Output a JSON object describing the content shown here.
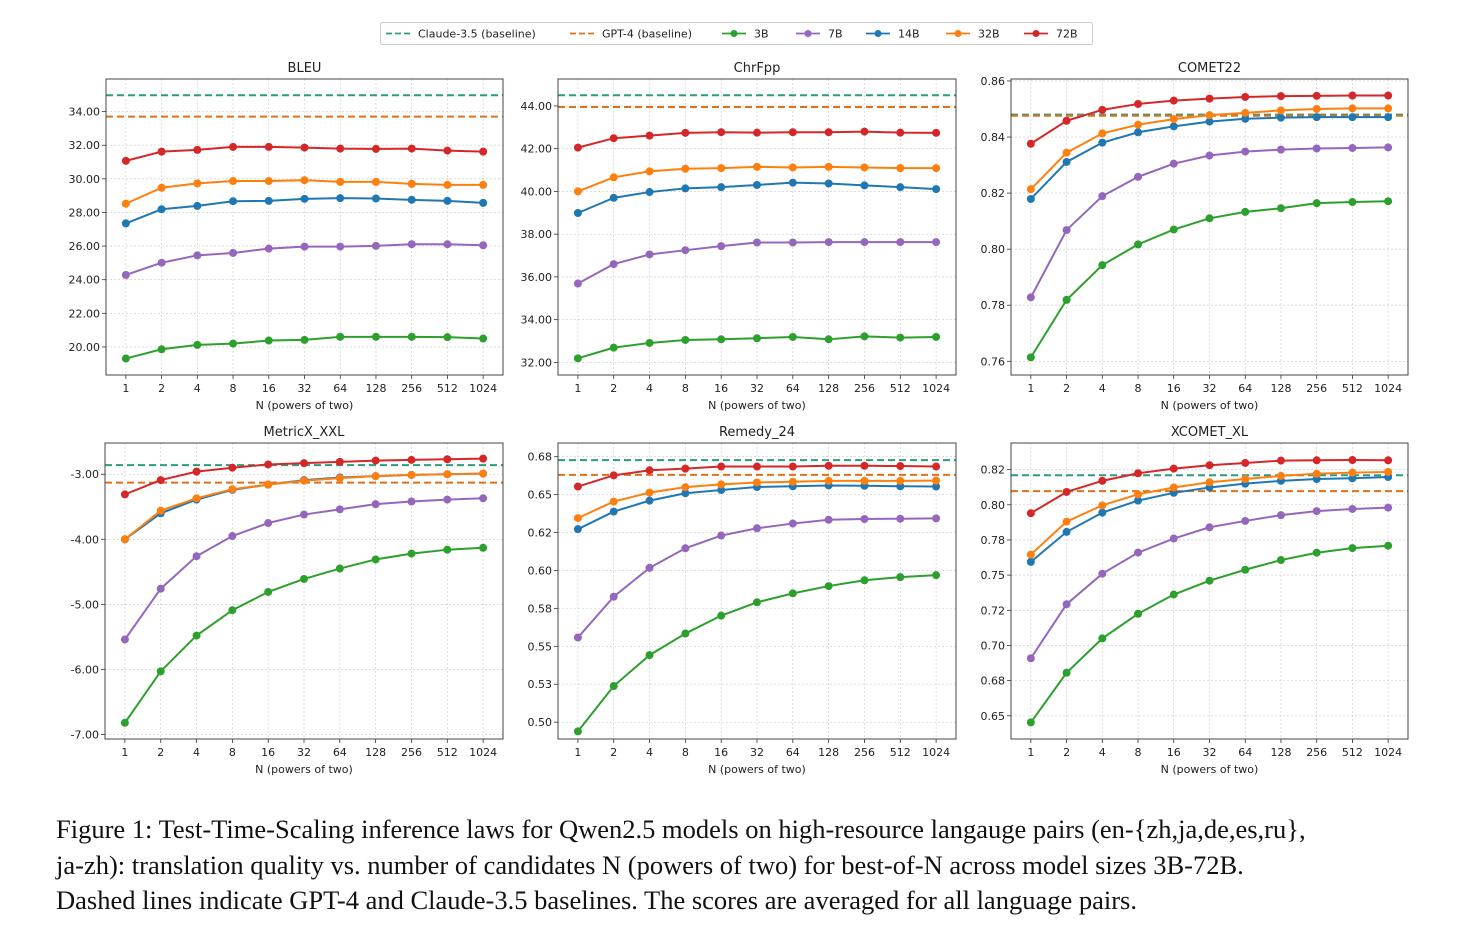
{
  "legend": [
    {
      "name": "Claude-3.5 (baseline)",
      "color": "#2a9d7f",
      "style": "dashed"
    },
    {
      "name": "GPT-4 (baseline)",
      "color": "#e0701a",
      "style": "dashed"
    },
    {
      "name": "3B",
      "color": "#2ca02c",
      "style": "line-marker"
    },
    {
      "name": "7B",
      "color": "#9467bd",
      "style": "line-marker"
    },
    {
      "name": "14B",
      "color": "#1f77b4",
      "style": "line-marker"
    },
    {
      "name": "32B",
      "color": "#ff7f0e",
      "style": "line-marker"
    },
    {
      "name": "72B",
      "color": "#d62728",
      "style": "line-marker"
    }
  ],
  "chart_data": [
    {
      "type": "line",
      "title": "BLEU",
      "xlabel": "N (powers of two)",
      "ylabel": "",
      "categories": [
        "1",
        "2",
        "4",
        "8",
        "16",
        "32",
        "64",
        "128",
        "256",
        "512",
        "1024"
      ],
      "ylim": [
        18.33,
        35.94
      ],
      "grid": true,
      "legend_placement": "top-center",
      "yticks": [
        {
          "value": 20,
          "label": "20.00"
        },
        {
          "value": 22,
          "label": "22.00"
        },
        {
          "value": 24,
          "label": "24.00"
        },
        {
          "value": 26,
          "label": "26.00"
        },
        {
          "value": 28,
          "label": "28.00"
        },
        {
          "value": 30,
          "label": "30.00"
        },
        {
          "value": 32,
          "label": "32.00"
        },
        {
          "value": 34,
          "label": "34.00"
        }
      ],
      "baselines": [
        {
          "name": "Claude-3.5 (baseline)",
          "value": 34.97
        },
        {
          "name": "GPT-4 (baseline)",
          "value": 33.7
        }
      ],
      "series": [
        {
          "name": "3B",
          "values": [
            19.31,
            19.86,
            20.12,
            20.2,
            20.38,
            20.42,
            20.6,
            20.6,
            20.6,
            20.58,
            20.5
          ]
        },
        {
          "name": "7B",
          "values": [
            24.28,
            25.01,
            25.45,
            25.59,
            25.85,
            25.97,
            25.97,
            26.01,
            26.11,
            26.11,
            26.05
          ]
        },
        {
          "name": "14B",
          "values": [
            27.35,
            28.19,
            28.39,
            28.67,
            28.69,
            28.81,
            28.85,
            28.83,
            28.75,
            28.69,
            28.57
          ]
        },
        {
          "name": "32B",
          "values": [
            28.52,
            29.47,
            29.73,
            29.87,
            29.87,
            29.92,
            29.82,
            29.82,
            29.7,
            29.64,
            29.64
          ]
        },
        {
          "name": "72B",
          "values": [
            31.07,
            31.62,
            31.72,
            31.9,
            31.9,
            31.86,
            31.8,
            31.78,
            31.8,
            31.68,
            31.62
          ]
        }
      ]
    },
    {
      "type": "line",
      "title": "ChrFpp",
      "xlabel": "N (powers of two)",
      "ylabel": "",
      "categories": [
        "1",
        "2",
        "4",
        "8",
        "16",
        "32",
        "64",
        "128",
        "256",
        "512",
        "1024"
      ],
      "ylim": [
        31.41,
        45.26
      ],
      "grid": true,
      "yticks": [
        {
          "value": 32,
          "label": "32.00"
        },
        {
          "value": 34,
          "label": "34.00"
        },
        {
          "value": 36,
          "label": "36.00"
        },
        {
          "value": 38,
          "label": "38.00"
        },
        {
          "value": 40,
          "label": "40.00"
        },
        {
          "value": 42,
          "label": "42.00"
        },
        {
          "value": 44,
          "label": "44.00"
        }
      ],
      "baselines": [
        {
          "name": "Claude-3.5 (baseline)",
          "value": 44.5
        },
        {
          "name": "GPT-4 (baseline)",
          "value": 43.95
        }
      ],
      "series": [
        {
          "name": "3B",
          "values": [
            32.19,
            32.69,
            32.91,
            33.05,
            33.08,
            33.13,
            33.19,
            33.08,
            33.22,
            33.16,
            33.19
          ]
        },
        {
          "name": "7B",
          "values": [
            35.69,
            36.6,
            37.05,
            37.25,
            37.44,
            37.61,
            37.61,
            37.63,
            37.63,
            37.63,
            37.63
          ]
        },
        {
          "name": "14B",
          "values": [
            38.99,
            39.7,
            39.97,
            40.14,
            40.2,
            40.3,
            40.41,
            40.37,
            40.28,
            40.2,
            40.11
          ]
        },
        {
          "name": "32B",
          "values": [
            40.0,
            40.66,
            40.94,
            41.06,
            41.09,
            41.15,
            41.12,
            41.15,
            41.12,
            41.09,
            41.09
          ]
        },
        {
          "name": "72B",
          "values": [
            42.05,
            42.49,
            42.61,
            42.74,
            42.77,
            42.75,
            42.77,
            42.77,
            42.8,
            42.75,
            42.74
          ]
        }
      ]
    },
    {
      "type": "line",
      "title": "COMET22",
      "xlabel": "N (powers of two)",
      "ylabel": "",
      "categories": [
        "1",
        "2",
        "4",
        "8",
        "16",
        "32",
        "64",
        "128",
        "256",
        "512",
        "1024"
      ],
      "ylim": [
        0.7551,
        0.8607
      ],
      "grid": true,
      "yticks": [
        {
          "value": 0.76,
          "label": "0.76"
        },
        {
          "value": 0.78,
          "label": "0.78"
        },
        {
          "value": 0.8,
          "label": "0.80"
        },
        {
          "value": 0.82,
          "label": "0.82"
        },
        {
          "value": 0.84,
          "label": "0.84"
        },
        {
          "value": 0.86,
          "label": "0.86"
        }
      ],
      "baselines": [
        {
          "name": "Claude-3.5 (baseline)",
          "value": 0.848
        },
        {
          "name": "GPT-4 (baseline)",
          "value": 0.8476
        }
      ],
      "series": [
        {
          "name": "3B",
          "values": [
            0.7614,
            0.7819,
            0.7943,
            0.8017,
            0.807,
            0.811,
            0.8133,
            0.8146,
            0.8164,
            0.8168,
            0.8171
          ]
        },
        {
          "name": "7B",
          "values": [
            0.7828,
            0.8068,
            0.8189,
            0.8258,
            0.8305,
            0.8334,
            0.8348,
            0.8355,
            0.8359,
            0.8361,
            0.8363
          ]
        },
        {
          "name": "14B",
          "values": [
            0.8179,
            0.8311,
            0.838,
            0.8417,
            0.8438,
            0.8455,
            0.8465,
            0.8469,
            0.8471,
            0.8471,
            0.8471
          ]
        },
        {
          "name": "32B",
          "values": [
            0.8214,
            0.8344,
            0.8413,
            0.8444,
            0.8464,
            0.8478,
            0.8486,
            0.8495,
            0.85,
            0.8502,
            0.8502
          ]
        },
        {
          "name": "72B",
          "values": [
            0.8376,
            0.8458,
            0.8497,
            0.8518,
            0.853,
            0.8537,
            0.8543,
            0.8546,
            0.8547,
            0.8548,
            0.8548
          ]
        }
      ]
    },
    {
      "type": "line",
      "title": "MetricX_XXL",
      "xlabel": "N (powers of two)",
      "ylabel": "",
      "categories": [
        "1",
        "2",
        "4",
        "8",
        "16",
        "32",
        "64",
        "128",
        "256",
        "512",
        "1024"
      ],
      "ylim": [
        -7.07,
        -2.52
      ],
      "grid": true,
      "yticks": [
        {
          "value": -7,
          "label": "-7.00"
        },
        {
          "value": -6,
          "label": "-6.00"
        },
        {
          "value": -5,
          "label": "-5.00"
        },
        {
          "value": -4,
          "label": "-4.00"
        },
        {
          "value": -3,
          "label": "-3.00"
        }
      ],
      "baselines": [
        {
          "name": "Claude-3.5 (baseline)",
          "value": -2.86
        },
        {
          "name": "GPT-4 (baseline)",
          "value": -3.13
        }
      ],
      "series": [
        {
          "name": "3B",
          "values": [
            -6.82,
            -6.03,
            -5.48,
            -5.09,
            -4.81,
            -4.61,
            -4.45,
            -4.31,
            -4.22,
            -4.16,
            -4.13
          ]
        },
        {
          "name": "7B",
          "values": [
            -5.54,
            -4.76,
            -4.26,
            -3.95,
            -3.75,
            -3.62,
            -3.54,
            -3.46,
            -3.42,
            -3.39,
            -3.37
          ]
        },
        {
          "name": "14B",
          "values": [
            -4.0,
            -3.6,
            -3.39,
            -3.24,
            -3.16,
            -3.09,
            -3.05,
            -3.03,
            -3.01,
            -3.0,
            -2.99
          ]
        },
        {
          "name": "32B",
          "values": [
            -4.0,
            -3.56,
            -3.37,
            -3.23,
            -3.16,
            -3.1,
            -3.06,
            -3.03,
            -3.01,
            -3.0,
            -2.99
          ]
        },
        {
          "name": "72B",
          "values": [
            -3.31,
            -3.09,
            -2.96,
            -2.9,
            -2.85,
            -2.83,
            -2.81,
            -2.79,
            -2.78,
            -2.77,
            -2.76
          ]
        }
      ]
    },
    {
      "type": "line",
      "title": "Remedy_24",
      "xlabel": "N (powers of two)",
      "ylabel": "",
      "categories": [
        "1",
        "2",
        "4",
        "8",
        "16",
        "32",
        "64",
        "128",
        "256",
        "512",
        "1024"
      ],
      "ylim": [
        0.4889,
        0.684
      ],
      "grid": true,
      "yticks": [
        {
          "value": 0.5,
          "label": "0.50"
        },
        {
          "value": 0.525,
          "label": "0.53"
        },
        {
          "value": 0.55,
          "label": "0.55"
        },
        {
          "value": 0.575,
          "label": "0.58"
        },
        {
          "value": 0.6,
          "label": "0.60"
        },
        {
          "value": 0.625,
          "label": "0.62"
        },
        {
          "value": 0.65,
          "label": "0.65"
        },
        {
          "value": 0.675,
          "label": "0.68"
        }
      ],
      "baselines": [
        {
          "name": "Claude-3.5 (baseline)",
          "value": 0.6727
        },
        {
          "name": "GPT-4 (baseline)",
          "value": 0.663
        }
      ],
      "series": [
        {
          "name": "3B",
          "values": [
            0.4939,
            0.5238,
            0.5442,
            0.5584,
            0.5702,
            0.579,
            0.5849,
            0.5897,
            0.5935,
            0.5956,
            0.5969
          ]
        },
        {
          "name": "7B",
          "values": [
            0.5558,
            0.5827,
            0.6017,
            0.6146,
            0.623,
            0.6278,
            0.6309,
            0.6334,
            0.6339,
            0.6341,
            0.6343
          ]
        },
        {
          "name": "14B",
          "values": [
            0.6272,
            0.6388,
            0.646,
            0.6509,
            0.653,
            0.655,
            0.6555,
            0.656,
            0.6558,
            0.6555,
            0.6553
          ]
        },
        {
          "name": "32B",
          "values": [
            0.6345,
            0.6454,
            0.6513,
            0.6549,
            0.6567,
            0.658,
            0.6585,
            0.659,
            0.659,
            0.659,
            0.6592
          ]
        },
        {
          "name": "72B",
          "values": [
            0.6553,
            0.6627,
            0.666,
            0.6671,
            0.6685,
            0.6685,
            0.6685,
            0.669,
            0.669,
            0.6688,
            0.6685
          ]
        }
      ]
    },
    {
      "type": "line",
      "title": "XCOMET_XL",
      "xlabel": "N (powers of two)",
      "ylabel": "",
      "categories": [
        "1",
        "2",
        "4",
        "8",
        "16",
        "32",
        "64",
        "128",
        "256",
        "512",
        "1024"
      ],
      "ylim": [
        0.6335,
        0.8439
      ],
      "grid": true,
      "yticks": [
        {
          "value": 0.65,
          "label": "0.65"
        },
        {
          "value": 0.675,
          "label": "0.68"
        },
        {
          "value": 0.7,
          "label": "0.70"
        },
        {
          "value": 0.725,
          "label": "0.72"
        },
        {
          "value": 0.75,
          "label": "0.75"
        },
        {
          "value": 0.775,
          "label": "0.78"
        },
        {
          "value": 0.8,
          "label": "0.80"
        },
        {
          "value": 0.825,
          "label": "0.82"
        }
      ],
      "baselines": [
        {
          "name": "Claude-3.5 (baseline)",
          "value": 0.821
        },
        {
          "name": "GPT-4 (baseline)",
          "value": 0.8097
        }
      ],
      "series": [
        {
          "name": "3B",
          "values": [
            0.6453,
            0.6806,
            0.705,
            0.7225,
            0.7362,
            0.746,
            0.7538,
            0.7607,
            0.7659,
            0.7692,
            0.7709
          ]
        },
        {
          "name": "7B",
          "values": [
            0.6909,
            0.7293,
            0.751,
            0.766,
            0.776,
            0.784,
            0.7885,
            0.7926,
            0.7955,
            0.797,
            0.798
          ]
        },
        {
          "name": "14B",
          "values": [
            0.7594,
            0.7807,
            0.7944,
            0.803,
            0.8085,
            0.8123,
            0.815,
            0.817,
            0.8183,
            0.8188,
            0.8197
          ]
        },
        {
          "name": "32B",
          "values": [
            0.7646,
            0.788,
            0.7996,
            0.8074,
            0.8123,
            0.816,
            0.8183,
            0.8205,
            0.822,
            0.8228,
            0.8233
          ]
        },
        {
          "name": "72B",
          "values": [
            0.794,
            0.8091,
            0.817,
            0.8224,
            0.8257,
            0.8281,
            0.8297,
            0.8314,
            0.8316,
            0.8318,
            0.8316
          ]
        }
      ]
    }
  ],
  "caption": {
    "lines": [
      "Figure 1: Test-Time-Scaling inference laws for Qwen2.5 models on high-resource langauge pairs (en-{zh,ja,de,es,ru},",
      "ja-zh): translation quality vs. number of candidates N (powers of two) for best-of-N across model sizes 3B-72B.",
      "Dashed lines indicate GPT-4 and Claude-3.5 baselines. The scores are averaged for all language pairs."
    ]
  }
}
